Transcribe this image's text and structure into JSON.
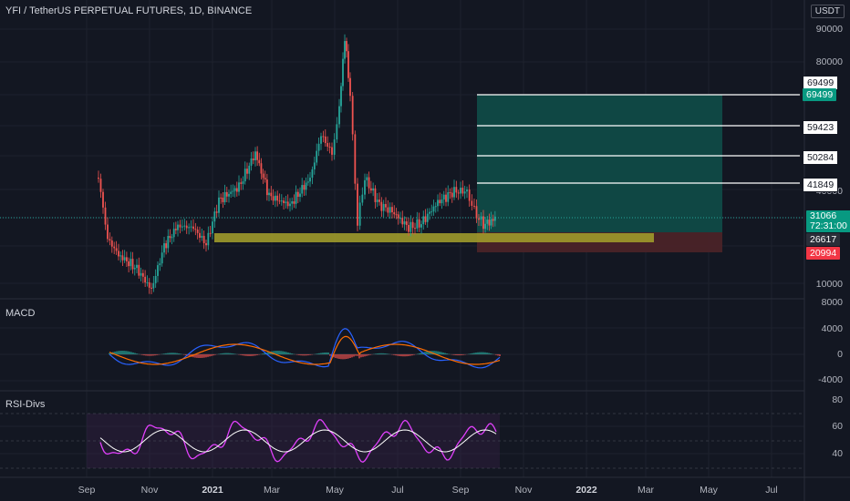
{
  "header": {
    "title": "YFI / TetherUS PERPETUAL FUTURES, 1D, BINANCE",
    "currency": "USDT"
  },
  "panes": {
    "macd_label": "MACD",
    "rsi_label": "RSI-Divs"
  },
  "axes": {
    "price_ticks": [
      "90000",
      "80000",
      "40000",
      "10000"
    ],
    "macd_ticks": [
      "8000",
      "4000",
      "0",
      "-4000"
    ],
    "rsi_ticks": [
      "80",
      "60",
      "40"
    ],
    "time_ticks": [
      "Sep",
      "Nov",
      "2021",
      "Mar",
      "May",
      "Jul",
      "Sep",
      "Nov",
      "2022",
      "Mar",
      "May",
      "Jul"
    ]
  },
  "levels": {
    "tp4": "69499",
    "tp4_tag": "69499",
    "tp3": "59423",
    "tp2": "50284",
    "tp1": "41849",
    "current_price": "31066",
    "countdown": "72:31:00",
    "entry": "26617",
    "stop": "20994"
  },
  "colors": {
    "background": "#131722",
    "up": "#26a69a",
    "down": "#ef5350",
    "profit_zone": "#0f4a47",
    "loss_zone": "#4a2328",
    "support_zone": "#9e9a2b",
    "macd_line": "#2962ff",
    "signal_line": "#ff6d00",
    "rsi_line": "#e040fb"
  },
  "chart_data": {
    "type": "candlestick",
    "symbol": "YFI / TetherUS PERPETUAL FUTURES",
    "interval": "1D",
    "exchange": "BINANCE",
    "approx_price_path": [
      {
        "date": "2020-09",
        "price": 38000
      },
      {
        "date": "2020-11",
        "price": 9000
      },
      {
        "date": "2021-01",
        "price": 30000
      },
      {
        "date": "2021-03",
        "price": 38000
      },
      {
        "date": "2021-05",
        "price": 92000
      },
      {
        "date": "2021-06",
        "price": 40000
      },
      {
        "date": "2021-07",
        "price": 28000
      },
      {
        "date": "2021-08",
        "price": 45000
      },
      {
        "date": "2021-09",
        "price": 31066
      }
    ],
    "take_profit_levels": [
      41849,
      50284,
      59423,
      69499
    ],
    "entry": 26617,
    "stop_loss": 20994,
    "indicators": [
      "MACD",
      "RSI-Divs"
    ]
  }
}
